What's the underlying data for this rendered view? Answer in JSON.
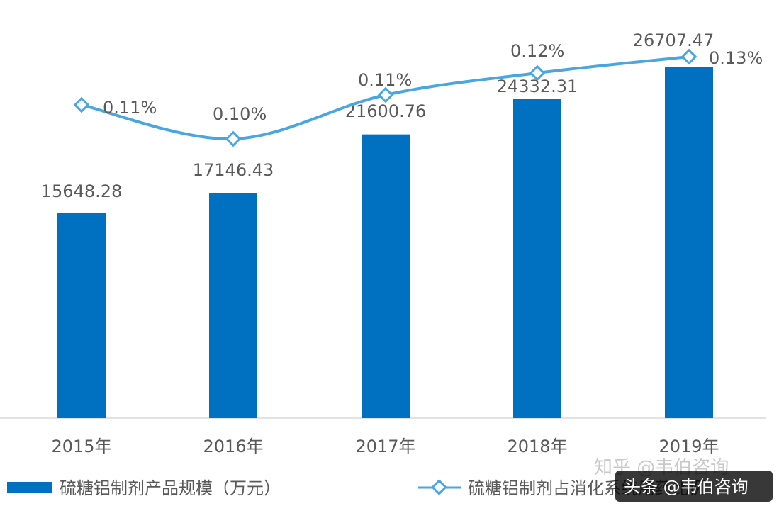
{
  "chart_data": {
    "type": "bar",
    "categories": [
      "2015年",
      "2016年",
      "2017年",
      "2018年",
      "2019年"
    ],
    "series": [
      {
        "name": "硫糖铝制剂产品规模（万元）",
        "type": "bar",
        "values": [
          15648.28,
          17146.43,
          21600.76,
          24332.31,
          26707.47
        ],
        "labels": [
          "15648.28",
          "17146.43",
          "21600.76",
          "24332.31",
          "26707.47"
        ],
        "color": "#0070c0"
      },
      {
        "name": "硫糖铝制剂占消化系统用药比例",
        "type": "line",
        "values": [
          0.11,
          0.1,
          0.11,
          0.12,
          0.13
        ],
        "labels": [
          "0.11%",
          "0.10%",
          "0.11%",
          "0.12%",
          "0.13%"
        ],
        "color": "#4aa6e0"
      }
    ],
    "title": "",
    "xlabel": "",
    "ylabel": "",
    "ylim": [
      0,
      28000
    ],
    "grid": false,
    "legend": "bottom"
  },
  "watermarks": {
    "zhihu": "知乎 @韦伯咨询",
    "toutiao": "头条 @韦伯咨询"
  }
}
